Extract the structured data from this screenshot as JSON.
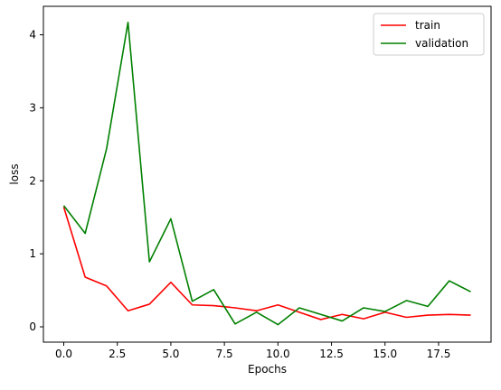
{
  "chart_data": {
    "type": "line",
    "xlabel": "Epochs",
    "ylabel": "loss",
    "xlim": [
      -0.95,
      19.95
    ],
    "ylim": [
      -0.21,
      4.39
    ],
    "x_ticks": [
      0.0,
      2.5,
      5.0,
      7.5,
      10.0,
      12.5,
      15.0,
      17.5
    ],
    "x_tick_labels": [
      "0.0",
      "2.5",
      "5.0",
      "7.5",
      "10.0",
      "12.5",
      "15.0",
      "17.5"
    ],
    "y_ticks": [
      0,
      1,
      2,
      3,
      4
    ],
    "y_tick_labels": [
      "0",
      "1",
      "2",
      "3",
      "4"
    ],
    "grid": false,
    "legend_position": "top-right",
    "x": [
      0,
      1,
      2,
      3,
      4,
      5,
      6,
      7,
      8,
      9,
      10,
      11,
      12,
      13,
      14,
      15,
      16,
      17,
      18,
      19
    ],
    "series": [
      {
        "name": "train",
        "color": "#ff0000",
        "values": [
          1.64,
          0.68,
          0.56,
          0.22,
          0.31,
          0.61,
          0.3,
          0.29,
          0.26,
          0.22,
          0.3,
          0.2,
          0.1,
          0.17,
          0.11,
          0.2,
          0.13,
          0.16,
          0.17,
          0.16
        ]
      },
      {
        "name": "validation",
        "color": "#008000",
        "values": [
          1.66,
          1.28,
          2.44,
          4.17,
          0.89,
          1.48,
          0.35,
          0.51,
          0.04,
          0.2,
          0.03,
          0.26,
          0.17,
          0.08,
          0.26,
          0.21,
          0.36,
          0.28,
          0.63,
          0.48
        ]
      }
    ]
  }
}
